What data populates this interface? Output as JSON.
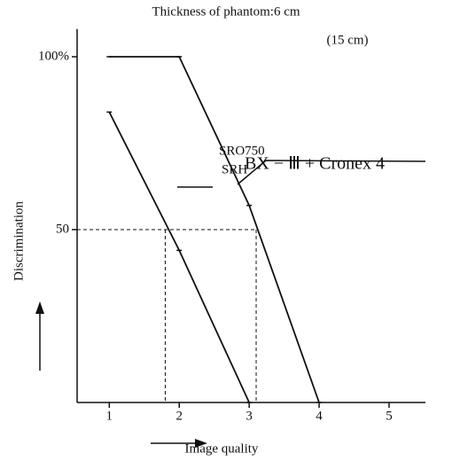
{
  "chart_data": {
    "type": "line",
    "title": "Thickness of phantom:6 cm",
    "subtitle": "(15 cm)",
    "xlabel": "Image quality",
    "ylabel": "Discrimination",
    "xlim": [
      0.54,
      5.52
    ],
    "ylim": [
      0,
      107
    ],
    "xticks": [
      1,
      2,
      3,
      4,
      5
    ],
    "yticks": [
      50,
      {
        "value": 100,
        "label": "100%"
      }
    ],
    "color": "#111111",
    "series": [
      {
        "name": "BX − Ⅲ + Cronex 4",
        "x": [
          1,
          2,
          3,
          4
        ],
        "values": [
          100,
          100,
          57,
          0
        ]
      },
      {
        "name": "SRO750 SRH",
        "x": [
          1,
          2,
          3
        ],
        "values": [
          84,
          44,
          0
        ]
      }
    ],
    "guides": [
      {
        "x": 1.8,
        "y": 50
      },
      {
        "x": 3.1,
        "y": 50
      }
    ]
  }
}
